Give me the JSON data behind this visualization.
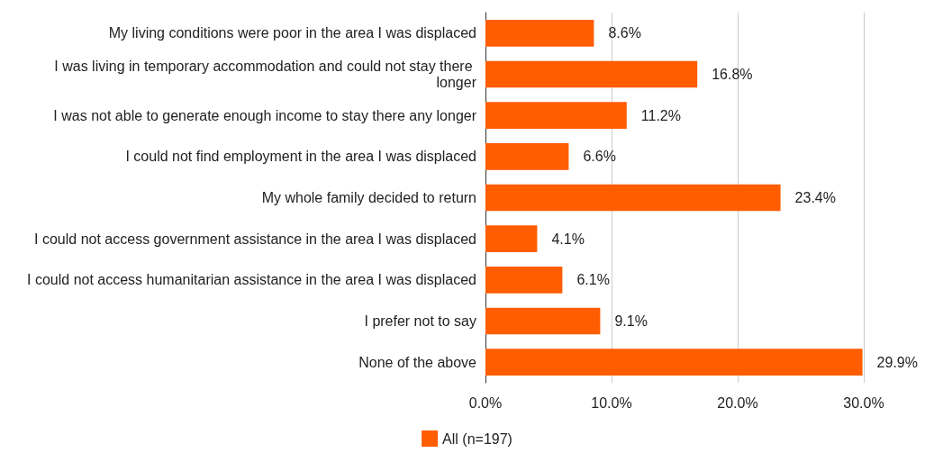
{
  "chart_data": {
    "type": "bar",
    "orientation": "horizontal",
    "categories": [
      "My living conditions were poor in the area I was displaced",
      "I was living in temporary accommodation and could not stay there longer",
      "I was not able to generate enough income to stay there any longer",
      "I could not find employment in the area I was displaced",
      "My whole family decided to return",
      "I could not access government assistance in the area I was displaced",
      "I could not access humanitarian assistance in the area I was displaced",
      "I prefer not to say",
      "None of the above"
    ],
    "series": [
      {
        "name": "All (n=197)",
        "color": "#ff5d00",
        "values": [
          8.6,
          16.8,
          11.2,
          6.6,
          23.4,
          4.1,
          6.1,
          9.1,
          29.9
        ],
        "value_labels": [
          "8.6%",
          "16.8%",
          "11.2%",
          "6.6%",
          "23.4%",
          "4.1%",
          "6.1%",
          "9.1%",
          "29.9%"
        ]
      }
    ],
    "xlim": [
      0,
      30
    ],
    "xticks": [
      {
        "value": 0,
        "label": "0.0%"
      },
      {
        "value": 10,
        "label": "10.0%"
      },
      {
        "value": 20,
        "label": "20.0%"
      },
      {
        "value": 30,
        "label": "30.0%"
      }
    ],
    "grid": "x",
    "legend": "bottom"
  }
}
